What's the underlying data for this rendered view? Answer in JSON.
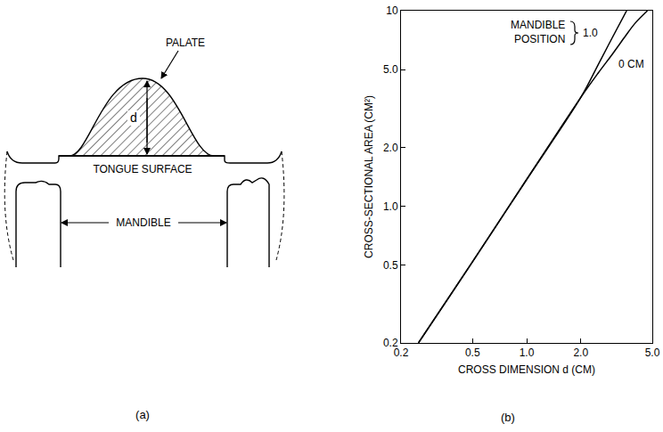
{
  "diagram": {
    "panel_label": "(a)",
    "texts": {
      "palate": "PALATE",
      "dimension": "d",
      "tongue": "TONGUE SURFACE",
      "mandible": "MANDIBLE"
    }
  },
  "chart_data": {
    "type": "line",
    "panel_label": "(b)",
    "xlabel": "CROSS DIMENSION d (CM)",
    "ylabel": "CROSS-SECTIONAL AREA (CM²)",
    "log": true,
    "grid": false,
    "xlim": [
      0.2,
      5.0
    ],
    "ylim": [
      0.2,
      10
    ],
    "xticks": [
      0.2,
      0.5,
      {
        "value": 1,
        "label": "1.0"
      },
      {
        "value": 2,
        "label": "2.0"
      },
      {
        "value": 5,
        "label": "5.0"
      }
    ],
    "yticks": [
      0.2,
      0.5,
      {
        "value": 1,
        "label": "1.0"
      },
      {
        "value": 2,
        "label": "2.0"
      },
      {
        "value": 5,
        "label": "5.0"
      },
      10
    ],
    "annotations": [
      {
        "text": "MANDIBLE POSITION"
      }
    ],
    "series": [
      {
        "name": "1.0",
        "color": "#000000",
        "x": [
          0.25,
          0.5,
          1.0,
          2.0,
          2.5,
          3.0,
          3.6
        ],
        "values": [
          0.2,
          0.52,
          1.37,
          3.6,
          5.3,
          7.3,
          10
        ]
      },
      {
        "name": "0 CM",
        "color": "#000000",
        "x": [
          0.25,
          0.5,
          1.0,
          2.0,
          2.5,
          3.0,
          3.5,
          4.0,
          4.7
        ],
        "values": [
          0.2,
          0.52,
          1.37,
          3.6,
          4.8,
          6.0,
          7.3,
          8.6,
          10
        ]
      }
    ]
  }
}
